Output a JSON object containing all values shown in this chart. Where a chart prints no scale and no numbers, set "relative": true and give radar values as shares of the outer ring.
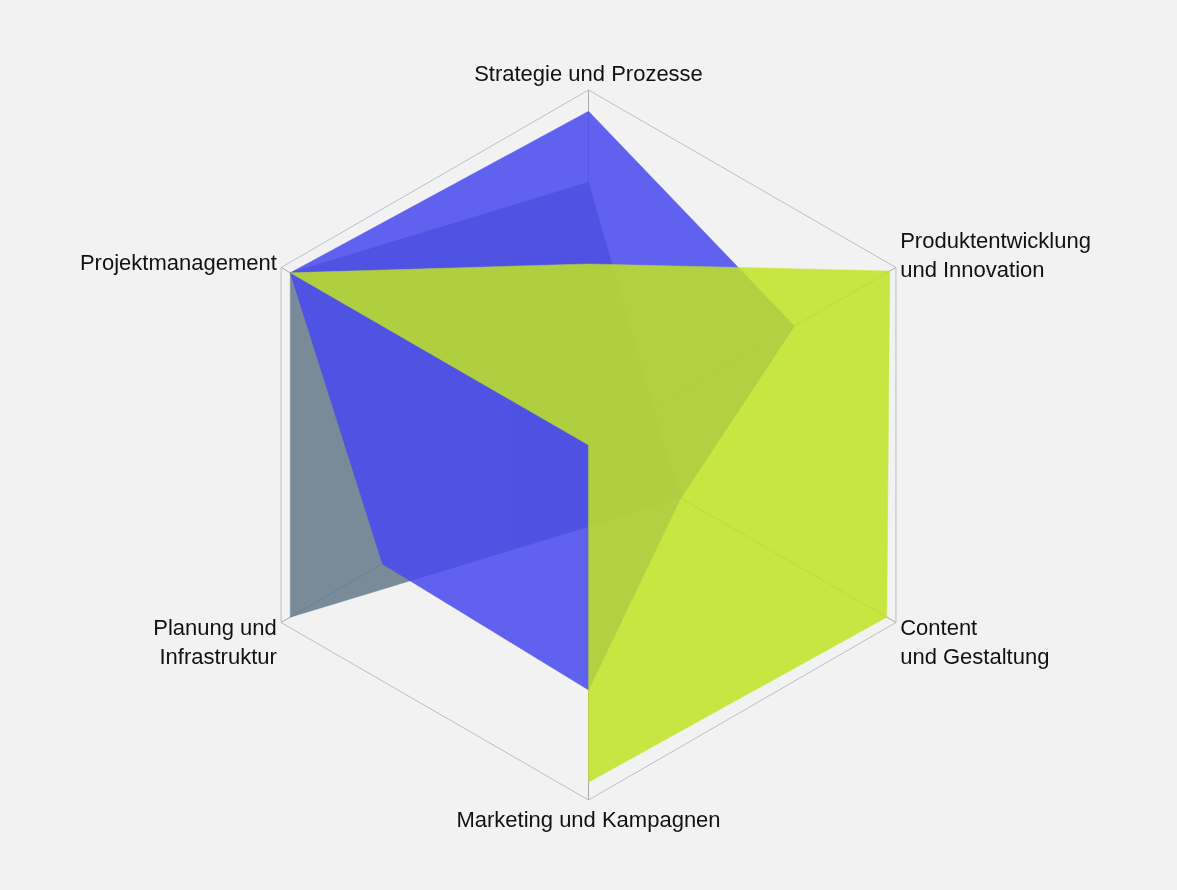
{
  "chart_data": {
    "type": "radar",
    "relative": true,
    "grid": true,
    "categories": [
      "Strategie und Prozesse",
      "Produktentwicklung\nund Innovation",
      "Content\nund Gestaltung",
      "Marketing und Kampagnen",
      "Planung und\nInfrastruktur",
      "Projektmanagement"
    ],
    "series": [
      {
        "color": "#64788a",
        "values": [
          0.74,
          0.21,
          0.3,
          0.23,
          0.97,
          0.97
        ]
      },
      {
        "color": "#4848f0",
        "values": [
          0.94,
          0.67,
          0.3,
          0.69,
          0.67,
          0.97
        ]
      },
      {
        "color": "#c0e424",
        "values": [
          0.51,
          0.98,
          0.97,
          0.95,
          0,
          0.97
        ]
      }
    ]
  }
}
